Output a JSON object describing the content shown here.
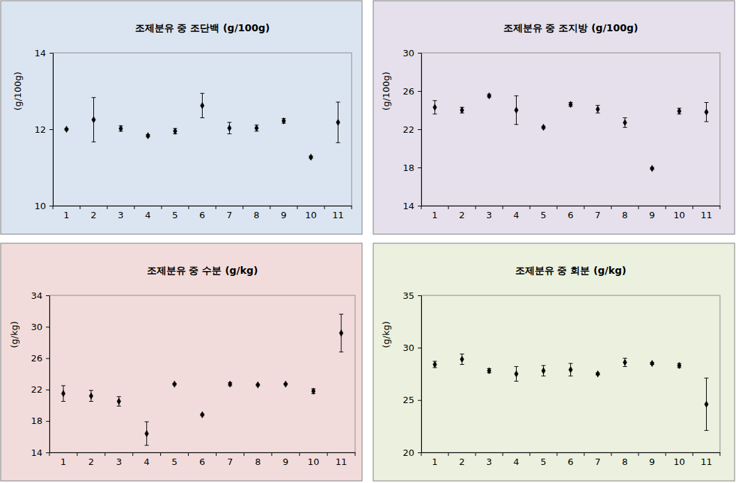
{
  "chart_data": [
    {
      "type": "scatter",
      "title": "조제분유 중 조단백 (g/100g)",
      "y_label": "(g/100g)",
      "categories": [
        "1",
        "2",
        "3",
        "4",
        "5",
        "6",
        "7",
        "8",
        "9",
        "10",
        "11"
      ],
      "values": [
        12.0,
        12.25,
        12.02,
        11.83,
        11.95,
        12.62,
        12.03,
        12.03,
        12.22,
        11.27,
        12.18
      ],
      "errors": [
        0.02,
        0.58,
        0.07,
        0.03,
        0.07,
        0.32,
        0.15,
        0.08,
        0.06,
        0.03,
        0.53
      ],
      "ylim": [
        10,
        14
      ],
      "yticks": [
        10,
        12,
        14
      ],
      "color": "#000000",
      "marker": "diamond"
    },
    {
      "type": "scatter",
      "title": "조제분유 중 조지방 (g/100g)",
      "y_label": "(g/100g)",
      "categories": [
        "1",
        "2",
        "3",
        "4",
        "5",
        "6",
        "7",
        "8",
        "9",
        "10",
        "11"
      ],
      "values": [
        24.3,
        24.0,
        25.5,
        24.0,
        22.2,
        24.6,
        24.1,
        22.7,
        17.9,
        23.9,
        23.8
      ],
      "errors": [
        0.7,
        0.3,
        0.15,
        1.5,
        0.1,
        0.2,
        0.4,
        0.5,
        0.1,
        0.3,
        1.0
      ],
      "ylim": [
        14,
        30
      ],
      "yticks": [
        14,
        18,
        22,
        26,
        30
      ],
      "color": "#000000",
      "marker": "diamond"
    },
    {
      "type": "scatter",
      "title": "조제분유 중 수분 (g/kg)",
      "y_label": "(g/kg)",
      "categories": [
        "1",
        "2",
        "3",
        "4",
        "5",
        "6",
        "7",
        "8",
        "9",
        "10",
        "11"
      ],
      "values": [
        21.5,
        21.2,
        20.5,
        16.4,
        22.7,
        18.8,
        22.7,
        22.6,
        22.7,
        21.8,
        29.2
      ],
      "errors": [
        1.0,
        0.7,
        0.6,
        1.5,
        0.1,
        0.1,
        0.2,
        0.1,
        0.1,
        0.3,
        2.4
      ],
      "ylim": [
        14,
        34
      ],
      "yticks": [
        14,
        18,
        22,
        26,
        30,
        34
      ],
      "color": "#000000",
      "marker": "diamond"
    },
    {
      "type": "scatter",
      "title": "조제분유 중 회분 (g/kg)",
      "y_label": "(g/kg)",
      "categories": [
        "1",
        "2",
        "3",
        "4",
        "5",
        "6",
        "7",
        "8",
        "9",
        "10",
        "11"
      ],
      "values": [
        28.4,
        28.9,
        27.8,
        27.5,
        27.8,
        27.9,
        27.5,
        28.6,
        28.5,
        28.3,
        24.6
      ],
      "errors": [
        0.3,
        0.5,
        0.2,
        0.7,
        0.5,
        0.6,
        0.1,
        0.4,
        0.1,
        0.2,
        2.5
      ],
      "ylim": [
        20,
        35
      ],
      "yticks": [
        20,
        25,
        30,
        35
      ],
      "color": "#000000",
      "marker": "diamond"
    }
  ]
}
